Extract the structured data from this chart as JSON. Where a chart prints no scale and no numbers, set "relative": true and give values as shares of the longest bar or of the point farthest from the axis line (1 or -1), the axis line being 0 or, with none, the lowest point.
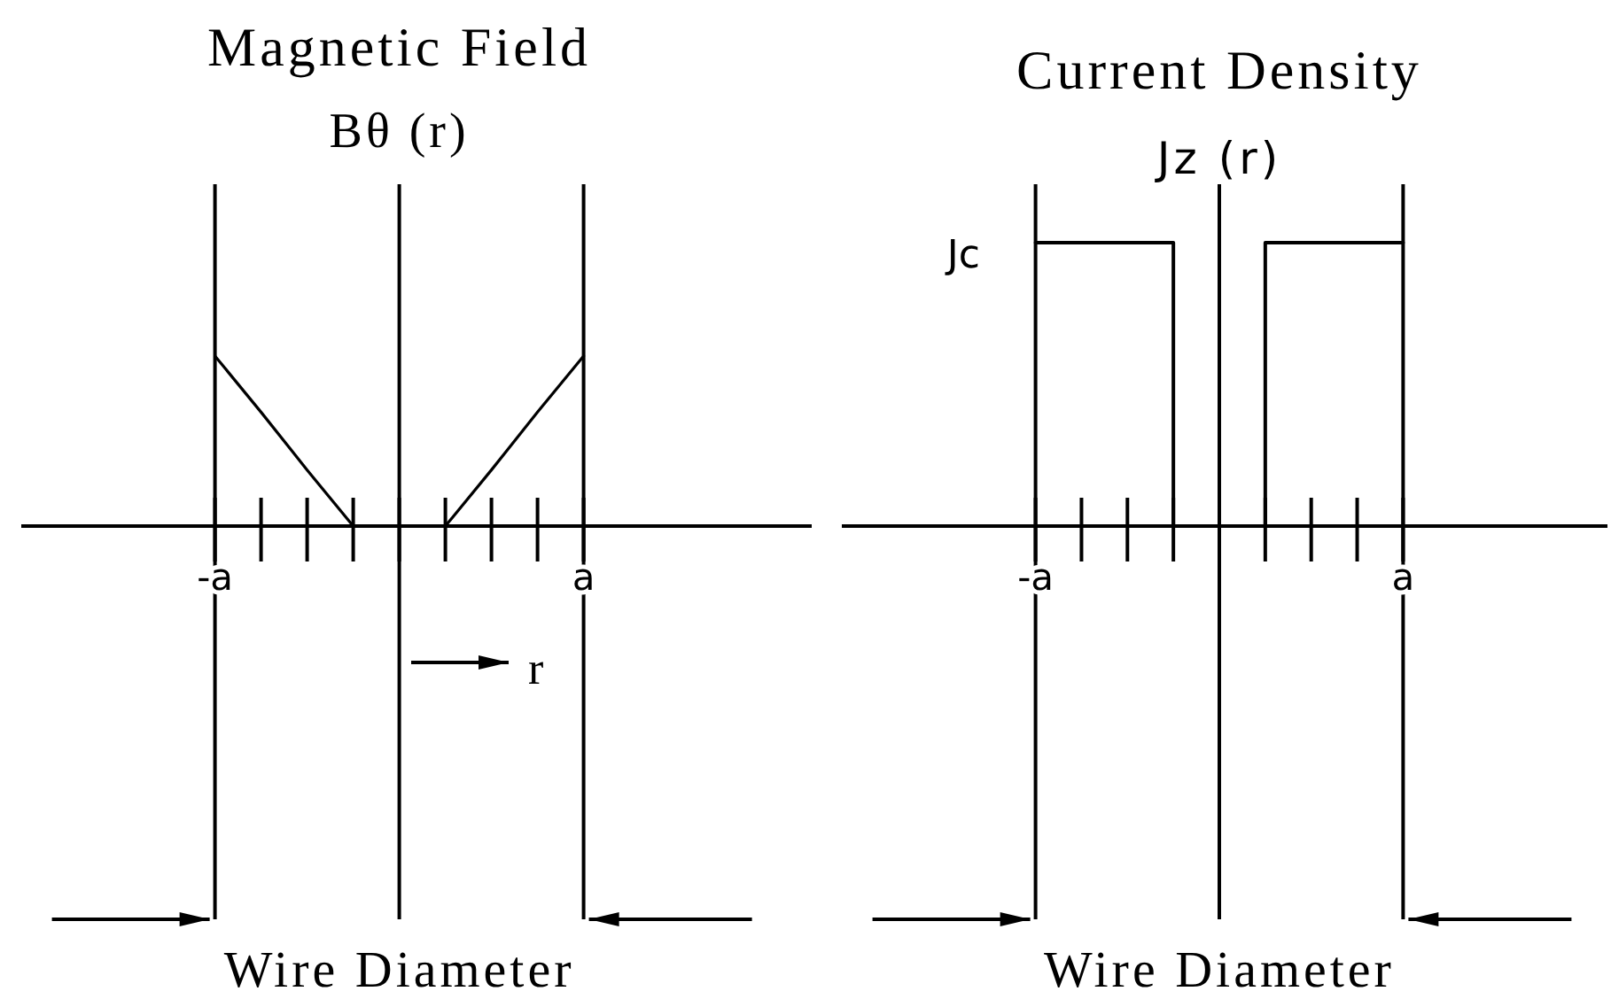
{
  "chart_data": [
    {
      "type": "line",
      "title": "Magnetic Field",
      "ylabel": "Bθ (r)",
      "xlabel": "Wire Diameter",
      "relative": true,
      "grid": "x",
      "categories": [
        "-a",
        null,
        null,
        null,
        null,
        null,
        null,
        null,
        "a"
      ],
      "series": [
        {
          "color": "#000000",
          "values": [
            1,
            0.67,
            0.33,
            0,
            null,
            0,
            0.33,
            0.67,
            1
          ]
        }
      ],
      "annotations": [
        "r"
      ]
    },
    {
      "type": "step",
      "title": "Current Density",
      "ylabel": "Jz (r)",
      "xlabel": "Wire Diameter",
      "relative": true,
      "grid": "x",
      "categories": [
        "-a",
        null,
        null,
        null,
        null,
        null,
        null,
        null,
        "a"
      ],
      "series": [
        {
          "color": "#000000",
          "values": [
            1,
            1,
            1,
            0,
            0,
            1,
            1,
            1,
            1
          ]
        }
      ],
      "annotations": [
        "Jc"
      ]
    }
  ]
}
